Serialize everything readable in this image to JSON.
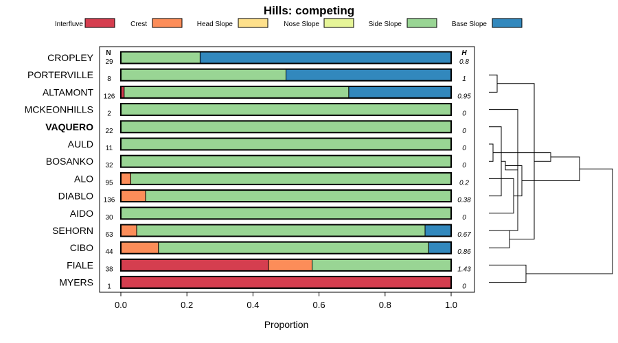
{
  "chart_data": {
    "type": "bar",
    "orientation": "horizontal-stacked",
    "title": "Hills: competing",
    "xlabel": "Proportion",
    "ylabel": "",
    "xlim": [
      0,
      1
    ],
    "x_ticks": [
      "0.0",
      "0.2",
      "0.4",
      "0.6",
      "0.8",
      "1.0"
    ],
    "x_tick_values": [
      0,
      0.2,
      0.4,
      0.6,
      0.8,
      1.0
    ],
    "n_header": "N",
    "h_header": "H",
    "legend_placement": "top",
    "legend": [
      {
        "name": "Interfluve",
        "color": "#D53E4F"
      },
      {
        "name": "Crest",
        "color": "#FC8D59"
      },
      {
        "name": "Head Slope",
        "color": "#FEE08B"
      },
      {
        "name": "Nose Slope",
        "color": "#E6F598"
      },
      {
        "name": "Side Slope",
        "color": "#99D594"
      },
      {
        "name": "Base Slope",
        "color": "#3288BD"
      }
    ],
    "rows": [
      {
        "name": "CROPLEY",
        "bold": false,
        "n": "29",
        "h": "0.8",
        "values": [
          0,
          0,
          0,
          0,
          0.24,
          0.76
        ]
      },
      {
        "name": "PORTERVILLE",
        "bold": false,
        "n": "8",
        "h": "1",
        "values": [
          0,
          0,
          0,
          0,
          0.5,
          0.5
        ]
      },
      {
        "name": "ALTAMONT",
        "bold": false,
        "n": "126",
        "h": "0.95",
        "values": [
          0.01,
          0,
          0,
          0,
          0.68,
          0.31
        ]
      },
      {
        "name": "MCKEONHILLS",
        "bold": false,
        "n": "2",
        "h": "0",
        "values": [
          0,
          0,
          0,
          0,
          1,
          0
        ]
      },
      {
        "name": "VAQUERO",
        "bold": true,
        "n": "22",
        "h": "0",
        "values": [
          0,
          0,
          0,
          0,
          1,
          0
        ]
      },
      {
        "name": "AULD",
        "bold": false,
        "n": "11",
        "h": "0",
        "values": [
          0,
          0,
          0,
          0,
          1,
          0
        ]
      },
      {
        "name": "BOSANKO",
        "bold": false,
        "n": "32",
        "h": "0",
        "values": [
          0,
          0,
          0,
          0,
          1,
          0
        ]
      },
      {
        "name": "ALO",
        "bold": false,
        "n": "95",
        "h": "0.2",
        "values": [
          0,
          0.03,
          0,
          0,
          0.97,
          0
        ]
      },
      {
        "name": "DIABLO",
        "bold": false,
        "n": "136",
        "h": "0.38",
        "values": [
          0,
          0.075,
          0,
          0,
          0.925,
          0
        ]
      },
      {
        "name": "AIDO",
        "bold": false,
        "n": "30",
        "h": "0",
        "values": [
          0,
          0,
          0,
          0,
          1,
          0
        ]
      },
      {
        "name": "SEHORN",
        "bold": false,
        "n": "63",
        "h": "0.67",
        "values": [
          0,
          0.048,
          0,
          0,
          0.873,
          0.079
        ]
      },
      {
        "name": "CIBO",
        "bold": false,
        "n": "44",
        "h": "0.86",
        "values": [
          0,
          0.114,
          0,
          0,
          0.818,
          0.068
        ]
      },
      {
        "name": "FIALE",
        "bold": false,
        "n": "38",
        "h": "1.43",
        "values": [
          0.447,
          0.132,
          0,
          0,
          0.421,
          0
        ]
      },
      {
        "name": "MYERS",
        "bold": false,
        "n": "1",
        "h": "0",
        "values": [
          1,
          0,
          0,
          0,
          0,
          0
        ]
      }
    ],
    "dendrogram": {
      "merges": [
        [
          2,
          1,
          0.1
        ],
        [
          5,
          6,
          0.05
        ],
        [
          8,
          4,
          0.15
        ],
        [
          9,
          7,
          0.3
        ],
        [
          11,
          10,
          0.25
        ],
        [
          10,
          3,
          0.35
        ],
        [
          12,
          13,
          0.45
        ],
        [
          -1,
          -5,
          0.55
        ],
        [
          -3,
          -6,
          0.2
        ],
        [
          -4,
          -9,
          0.4
        ],
        [
          -2,
          -8,
          0.75
        ],
        [
          -10,
          -11,
          1.1
        ],
        [
          -7,
          -12,
          1.5
        ]
      ]
    }
  }
}
